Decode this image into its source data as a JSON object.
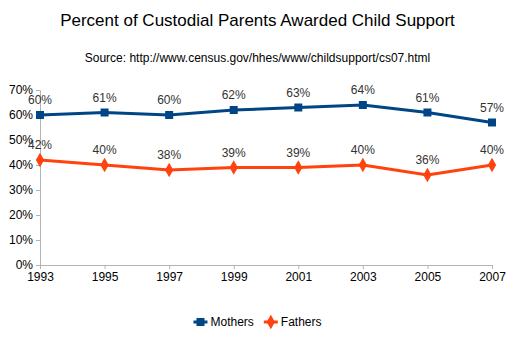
{
  "chart_data": {
    "type": "line",
    "title": "Percent of Custodial Parents Awarded Child Support",
    "subtitle": "Source:  http://www.census.gov/hhes/www/childsupport/cs07.html",
    "x": [
      1993,
      1995,
      1997,
      1999,
      2001,
      2003,
      2005,
      2007
    ],
    "xlim": [
      1993,
      2007
    ],
    "xticks": [
      1993,
      1995,
      1997,
      1999,
      2001,
      2003,
      2005,
      2007
    ],
    "ylim": [
      0,
      70
    ],
    "yticks": [
      {
        "value": 0,
        "label": "0%"
      },
      {
        "value": 10,
        "label": "10%"
      },
      {
        "value": 20,
        "label": "20%"
      },
      {
        "value": 30,
        "label": "30%"
      },
      {
        "value": 40,
        "label": "40%"
      },
      {
        "value": 50,
        "label": "50%"
      },
      {
        "value": 60,
        "label": "60%"
      },
      {
        "value": 70,
        "label": "70%"
      }
    ],
    "grid": false,
    "legend": "bottom",
    "data_labels": true,
    "series": [
      {
        "name": "Mothers",
        "color": "#004586",
        "marker": "square",
        "values": [
          60,
          61,
          60,
          62,
          63,
          64,
          61,
          57
        ],
        "value_labels": [
          "60%",
          "61%",
          "60%",
          "62%",
          "63%",
          "64%",
          "61%",
          "57%"
        ]
      },
      {
        "name": "Fathers",
        "color": "#ff420e",
        "marker": "diamond",
        "values": [
          42,
          40,
          38,
          39,
          39,
          40,
          36,
          40
        ],
        "value_labels": [
          "42%",
          "40%",
          "38%",
          "39%",
          "39%",
          "40%",
          "36%",
          "40%"
        ]
      }
    ]
  }
}
